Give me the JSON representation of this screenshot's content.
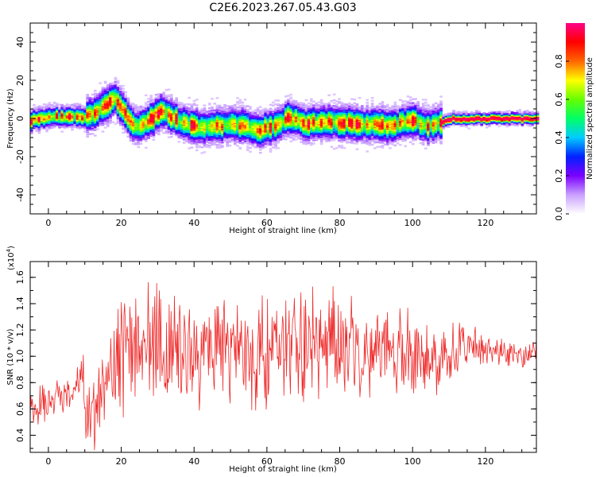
{
  "figure": {
    "title": "C2E6.2023.267.05.43.G03"
  },
  "chart_data": [
    {
      "type": "heatmap",
      "name": "spectrogram",
      "xlabel": "Height of straight line (km)",
      "ylabel": "Frequency (Hz)",
      "xlim": [
        -5,
        134
      ],
      "ylim": [
        -50,
        50
      ],
      "xticks": [
        0,
        20,
        40,
        60,
        80,
        100,
        120
      ],
      "yticks": [
        -40,
        -20,
        0,
        20,
        40
      ],
      "grid": false,
      "ridge": {
        "description_of_values": "approximate frequency (Hz) of the dominant spectral ridge versus height (km)",
        "x": [
          -5,
          0,
          5,
          10,
          14,
          17,
          18,
          19,
          21,
          23,
          25,
          28,
          31,
          34,
          38,
          42,
          46,
          50,
          54,
          57,
          60,
          63,
          66,
          70,
          73,
          77,
          81,
          85,
          89,
          93,
          97,
          100,
          103,
          106,
          110,
          115,
          120,
          125,
          130,
          134
        ],
        "freq": [
          -1,
          1,
          1,
          1,
          5,
          9,
          11,
          8,
          2,
          -3,
          -4,
          0,
          4,
          0,
          -3,
          -5,
          -4,
          -3,
          -4,
          -6,
          -5,
          -3,
          1,
          -3,
          -2,
          -2,
          -2,
          -3,
          -3,
          -4,
          -2,
          -1,
          -4,
          -3,
          0,
          0,
          0,
          0,
          0,
          0
        ]
      },
      "colorbar": {
        "label": "Normalized spectral amplitude",
        "range": [
          0.0,
          1.0
        ],
        "ticks": [
          "0.0",
          "0.2",
          "0.4",
          "0.6",
          "0.8"
        ],
        "colormap_hex": [
          "#ffffff",
          "#c9a0ff",
          "#7b00ff",
          "#0022ff",
          "#00ccff",
          "#00ff66",
          "#66ff00",
          "#ffff00",
          "#ff6600",
          "#ff0000",
          "#ff0088"
        ]
      }
    },
    {
      "type": "line",
      "name": "snr",
      "xlabel": "Height of straight line (km)",
      "ylabel": "SNR (10 * v/v)",
      "y_multiplier_label": "(x10",
      "y_multiplier_exponent": "4",
      "y_multiplier_close": ")",
      "xlim": [
        -5,
        134
      ],
      "ylim": [
        0.27,
        1.72
      ],
      "xticks": [
        0,
        20,
        40,
        60,
        80,
        100,
        120
      ],
      "yticks": [
        "0.4",
        "0.6",
        "0.8",
        "1.0",
        "1.2",
        "1.4",
        "1.6"
      ],
      "grid": false,
      "color": "#ef2b2b",
      "series": [
        {
          "x": [
            -5,
            0,
            5,
            8,
            9,
            10,
            12,
            15,
            18,
            20,
            25,
            30,
            35,
            40,
            45,
            50,
            55,
            60,
            65,
            70,
            75,
            80,
            85,
            90,
            95,
            100,
            105,
            110,
            115,
            120,
            125,
            130,
            134
          ],
          "mean": [
            0.6,
            0.65,
            0.7,
            0.8,
            0.95,
            0.6,
            0.5,
            0.75,
            0.9,
            1.0,
            1.05,
            1.1,
            1.08,
            1.0,
            1.05,
            1.05,
            1.0,
            1.05,
            1.08,
            1.1,
            1.1,
            1.08,
            1.05,
            1.05,
            1.03,
            1.0,
            0.98,
            1.05,
            1.05,
            1.05,
            1.02,
            1.0,
            1.05
          ],
          "spread": [
            0.18,
            0.2,
            0.2,
            0.25,
            0.4,
            0.3,
            0.3,
            0.35,
            0.4,
            0.55,
            0.55,
            0.55,
            0.55,
            0.5,
            0.5,
            0.5,
            0.5,
            0.5,
            0.5,
            0.55,
            0.5,
            0.5,
            0.45,
            0.4,
            0.4,
            0.4,
            0.35,
            0.25,
            0.2,
            0.15,
            0.12,
            0.12,
            0.12
          ]
        }
      ]
    }
  ]
}
